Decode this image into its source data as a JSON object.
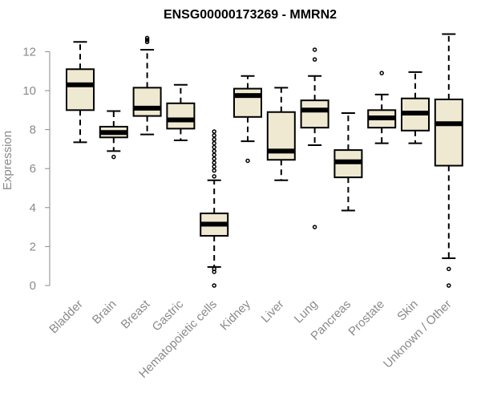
{
  "chart_data": {
    "type": "box",
    "title": "ENSG00000173269 - MMRN2",
    "xlabel": "",
    "ylabel": "Expression",
    "ylim": [
      0,
      13
    ],
    "yticks": [
      0,
      2,
      4,
      6,
      8,
      10,
      12
    ],
    "grid": false,
    "box_fill": "#efe9d2",
    "box_stroke": "#000000",
    "axis_color": "#8a8a8a",
    "categories": [
      "Bladder",
      "Brain",
      "Breast",
      "Gastric",
      "Hematopoietic cells",
      "Kidney",
      "Liver",
      "Lung",
      "Pancreas",
      "Prostate",
      "Skin",
      "Unknown / Other"
    ],
    "boxes": [
      {
        "category": "Bladder",
        "whisker_low": 7.35,
        "q1": 9.0,
        "median": 10.3,
        "q3": 11.1,
        "whisker_high": 12.5,
        "outliers": []
      },
      {
        "category": "Brain",
        "whisker_low": 6.9,
        "q1": 7.6,
        "median": 7.85,
        "q3": 8.15,
        "whisker_high": 8.95,
        "outliers": [
          6.6
        ]
      },
      {
        "category": "Breast",
        "whisker_low": 7.75,
        "q1": 8.7,
        "median": 9.1,
        "q3": 10.15,
        "whisker_high": 12.1,
        "outliers": [
          12.5,
          12.6,
          12.7
        ]
      },
      {
        "category": "Gastric",
        "whisker_low": 7.45,
        "q1": 8.05,
        "median": 8.5,
        "q3": 9.35,
        "whisker_high": 10.3,
        "outliers": []
      },
      {
        "category": "Hematopoietic cells",
        "whisker_low": 0.95,
        "q1": 2.55,
        "median": 3.15,
        "q3": 3.7,
        "whisker_high": 5.4,
        "outliers": [
          0.0,
          0.7,
          0.85,
          5.6,
          5.9,
          6.1,
          6.3,
          6.5,
          6.7,
          6.9,
          7.1,
          7.3,
          7.5,
          7.7,
          7.9
        ]
      },
      {
        "category": "Kidney",
        "whisker_low": 7.4,
        "q1": 8.65,
        "median": 9.75,
        "q3": 10.1,
        "whisker_high": 10.75,
        "outliers": [
          6.4
        ]
      },
      {
        "category": "Liver",
        "whisker_low": 5.4,
        "q1": 6.45,
        "median": 6.9,
        "q3": 8.9,
        "whisker_high": 10.15,
        "outliers": []
      },
      {
        "category": "Lung",
        "whisker_low": 7.2,
        "q1": 8.1,
        "median": 9.0,
        "q3": 9.5,
        "whisker_high": 10.75,
        "outliers": [
          3.0,
          11.6,
          12.1
        ]
      },
      {
        "category": "Pancreas",
        "whisker_low": 3.85,
        "q1": 5.55,
        "median": 6.35,
        "q3": 6.95,
        "whisker_high": 8.85,
        "outliers": []
      },
      {
        "category": "Prostate",
        "whisker_low": 7.3,
        "q1": 8.1,
        "median": 8.6,
        "q3": 9.0,
        "whisker_high": 9.8,
        "outliers": [
          10.9
        ]
      },
      {
        "category": "Skin",
        "whisker_low": 7.3,
        "q1": 7.95,
        "median": 8.85,
        "q3": 9.6,
        "whisker_high": 10.95,
        "outliers": []
      },
      {
        "category": "Unknown / Other",
        "whisker_low": 1.4,
        "q1": 6.15,
        "median": 8.3,
        "q3": 9.55,
        "whisker_high": 12.9,
        "outliers": [
          0.0,
          0.85
        ]
      }
    ]
  }
}
